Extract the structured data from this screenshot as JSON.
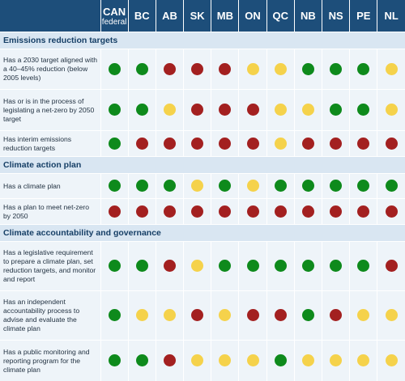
{
  "colors": {
    "green": "#0e8a1c",
    "yellow": "#f5d24b",
    "red": "#a32020",
    "header_bg": "#1d4e7a",
    "section_bg": "#d9e6f2",
    "row_bg": "#eef4f9"
  },
  "columns": [
    {
      "code": "CAN",
      "sub": "federal"
    },
    {
      "code": "BC",
      "sub": ""
    },
    {
      "code": "AB",
      "sub": ""
    },
    {
      "code": "SK",
      "sub": ""
    },
    {
      "code": "MB",
      "sub": ""
    },
    {
      "code": "ON",
      "sub": ""
    },
    {
      "code": "QC",
      "sub": ""
    },
    {
      "code": "NB",
      "sub": ""
    },
    {
      "code": "NS",
      "sub": ""
    },
    {
      "code": "PE",
      "sub": ""
    },
    {
      "code": "NL",
      "sub": ""
    }
  ],
  "sections": [
    {
      "title": "Emissions reduction targets",
      "rows": [
        {
          "label": "Has a 2030 target aligned with a 40–45% reduction (below 2005 levels)",
          "height": 49,
          "status": [
            "green",
            "green",
            "red",
            "red",
            "red",
            "yellow",
            "yellow",
            "green",
            "green",
            "green",
            "yellow"
          ]
        },
        {
          "label": "Has or is in the process of legislating a net-zero by 2050 target",
          "height": 50,
          "status": [
            "green",
            "green",
            "yellow",
            "red",
            "red",
            "red",
            "yellow",
            "yellow",
            "green",
            "green",
            "yellow"
          ]
        },
        {
          "label": "Has interim emissions reduction targets",
          "height": 31,
          "status": [
            "green",
            "red",
            "red",
            "red",
            "red",
            "red",
            "yellow",
            "red",
            "red",
            "red",
            "red"
          ]
        }
      ]
    },
    {
      "title": "Climate action plan",
      "rows": [
        {
          "label": "Has a climate plan",
          "height": 30,
          "status": [
            "green",
            "green",
            "green",
            "yellow",
            "green",
            "yellow",
            "green",
            "green",
            "green",
            "green",
            "green"
          ]
        },
        {
          "label": "Has a plan to meet net-zero by 2050",
          "height": 31,
          "status": [
            "red",
            "red",
            "red",
            "red",
            "red",
            "red",
            "red",
            "red",
            "red",
            "red",
            "red"
          ]
        }
      ]
    },
    {
      "title": "Climate accountability and governance",
      "rows": [
        {
          "label": "Has a legislative requirement to prepare a climate plan, set reduction targets, and monitor and report",
          "height": 60,
          "status": [
            "green",
            "green",
            "red",
            "yellow",
            "green",
            "green",
            "green",
            "green",
            "green",
            "green",
            "red"
          ]
        },
        {
          "label": "Has an independent accountability process to advise and evaluate the climate plan",
          "height": 60,
          "status": [
            "green",
            "yellow",
            "yellow",
            "red",
            "yellow",
            "red",
            "red",
            "green",
            "red",
            "yellow",
            "yellow"
          ]
        },
        {
          "label": "Has a public monitoring and reporting program for the climate plan",
          "height": 50,
          "status": [
            "green",
            "green",
            "red",
            "yellow",
            "yellow",
            "yellow",
            "green",
            "yellow",
            "yellow",
            "yellow",
            "yellow"
          ]
        }
      ]
    }
  ]
}
